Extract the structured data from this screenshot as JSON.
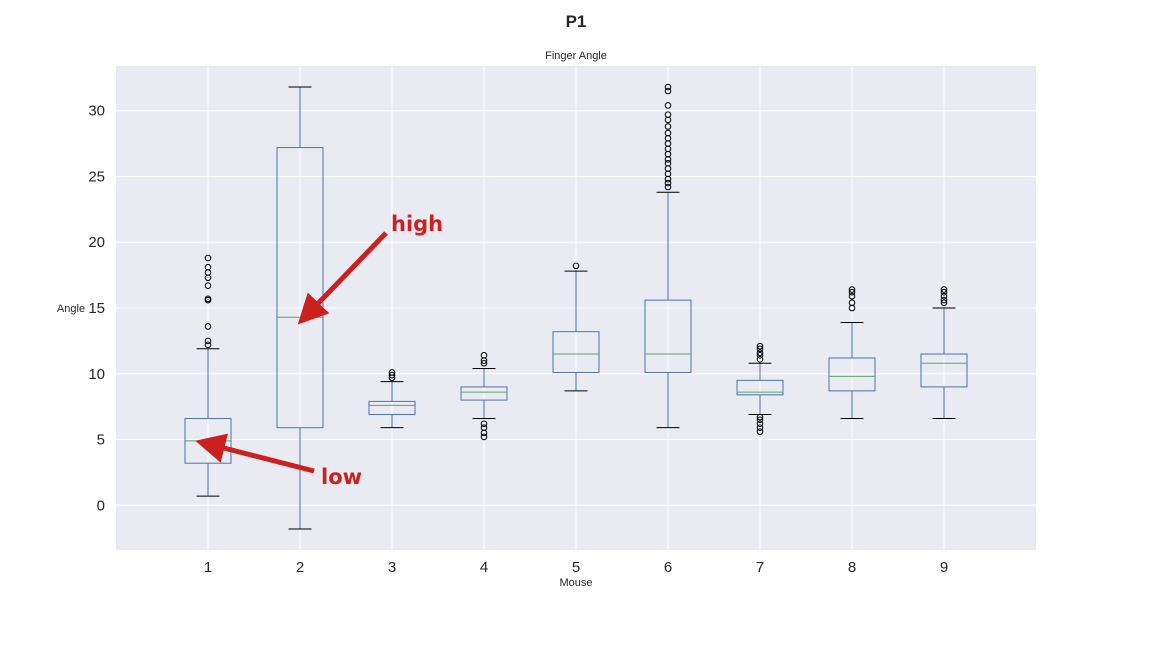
{
  "chart_data": {
    "type": "box",
    "suptitle": "P1",
    "title": "Finger Angle",
    "xlabel": "Mouse",
    "ylabel": "Angle",
    "categories": [
      "1",
      "2",
      "3",
      "4",
      "5",
      "6",
      "7",
      "8",
      "9"
    ],
    "ylim": [
      -3.4,
      33.4
    ],
    "yticks": [
      0,
      5,
      10,
      15,
      20,
      25,
      30
    ],
    "grid": true,
    "boxes": [
      {
        "category": "1",
        "whisker_low": 0.7,
        "q1": 3.2,
        "median": 4.9,
        "q3": 6.6,
        "whisker_high": 11.9,
        "outliers": [
          12.2,
          12.5,
          13.6,
          15.6,
          15.7,
          16.7,
          17.3,
          17.7,
          18.1,
          18.8
        ]
      },
      {
        "category": "2",
        "whisker_low": -1.8,
        "q1": 5.9,
        "median": 14.3,
        "q3": 27.2,
        "whisker_high": 31.8,
        "outliers": []
      },
      {
        "category": "3",
        "whisker_low": 5.9,
        "q1": 6.9,
        "median": 7.6,
        "q3": 7.9,
        "whisker_high": 9.4,
        "outliers": [
          9.7,
          9.9,
          10.1
        ]
      },
      {
        "category": "4",
        "whisker_low": 6.6,
        "q1": 8.0,
        "median": 8.6,
        "q3": 9.0,
        "whisker_high": 10.4,
        "outliers": [
          5.2,
          5.5,
          5.9,
          6.2,
          10.8,
          11.0,
          11.4
        ]
      },
      {
        "category": "5",
        "whisker_low": 8.7,
        "q1": 10.1,
        "median": 11.5,
        "q3": 13.2,
        "whisker_high": 17.8,
        "outliers": [
          18.2
        ]
      },
      {
        "category": "6",
        "whisker_low": 5.9,
        "q1": 10.1,
        "median": 11.5,
        "q3": 15.6,
        "whisker_high": 23.8,
        "outliers": [
          24.2,
          24.5,
          24.8,
          25.2,
          25.6,
          26.0,
          26.3,
          26.7,
          27.1,
          27.5,
          27.9,
          28.3,
          28.8,
          29.3,
          29.7,
          30.4,
          31.5,
          31.8
        ]
      },
      {
        "category": "7",
        "whisker_low": 6.9,
        "q1": 8.4,
        "median": 8.6,
        "q3": 9.5,
        "whisker_high": 10.8,
        "outliers": [
          5.6,
          5.9,
          6.2,
          6.5,
          6.7,
          11.1,
          11.4,
          11.6,
          11.9,
          12.1
        ]
      },
      {
        "category": "8",
        "whisker_low": 6.6,
        "q1": 8.7,
        "median": 9.8,
        "q3": 11.2,
        "whisker_high": 13.9,
        "outliers": [
          15.0,
          15.4,
          15.9,
          16.2,
          16.4
        ]
      },
      {
        "category": "9",
        "whisker_low": 6.6,
        "q1": 9.0,
        "median": 10.8,
        "q3": 11.5,
        "whisker_high": 15.0,
        "outliers": [
          15.4,
          15.6,
          15.9,
          16.2,
          16.4
        ]
      }
    ],
    "annotations": [
      {
        "text": "high",
        "points_to": {
          "category": "2",
          "y": 14.3
        }
      },
      {
        "text": "low",
        "points_to": {
          "category": "1",
          "y": 4.9
        }
      }
    ],
    "colors": {
      "background": "#eaeaf2",
      "grid": "#ffffff",
      "box": "#4c72b0",
      "median": "#55a868",
      "whisker_cap": "#000000",
      "annotation": "#cc1f1f"
    }
  }
}
